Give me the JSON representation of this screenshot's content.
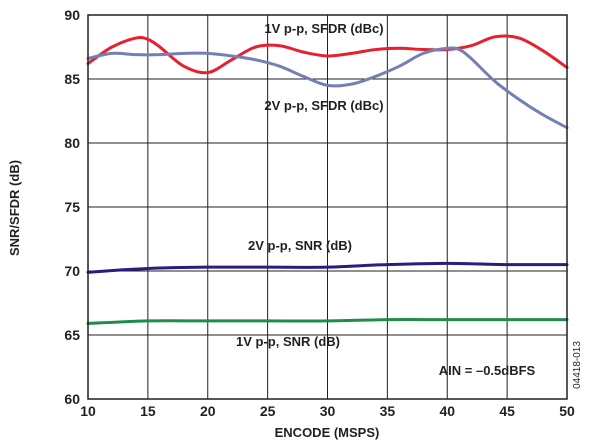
{
  "chart_data": {
    "type": "line",
    "title": "",
    "xlabel": "ENCODE (MSPS)",
    "ylabel": "SNR/SFDR (dB)",
    "xlim": [
      10,
      50
    ],
    "ylim": [
      60,
      90
    ],
    "xticks": [
      10,
      15,
      20,
      25,
      30,
      35,
      40,
      45,
      50
    ],
    "yticks": [
      60,
      65,
      70,
      75,
      80,
      85,
      90
    ],
    "grid": true,
    "series": [
      {
        "name": "1V p-p, SFDR (dBc)",
        "color": "#e8202e",
        "x": [
          10,
          12,
          14,
          15,
          16,
          18,
          20,
          22,
          24,
          26,
          28,
          30,
          32,
          34,
          36,
          38,
          40,
          42,
          44,
          46,
          48,
          50
        ],
        "y": [
          86.2,
          87.5,
          88.2,
          88.1,
          87.5,
          86.0,
          85.5,
          86.5,
          87.5,
          87.6,
          87.1,
          86.8,
          87.0,
          87.3,
          87.4,
          87.3,
          87.3,
          87.6,
          88.3,
          88.2,
          87.2,
          85.9
        ]
      },
      {
        "name": "2V p-p, SFDR (dBc)",
        "color": "#7480b5",
        "x": [
          10,
          12,
          14,
          16,
          18,
          20,
          22,
          24,
          26,
          28,
          30,
          32,
          34,
          36,
          38,
          40,
          41,
          42,
          44,
          46,
          48,
          50
        ],
        "y": [
          86.6,
          87.0,
          86.9,
          86.9,
          87.0,
          87.0,
          86.8,
          86.5,
          86.0,
          85.2,
          84.5,
          84.6,
          85.2,
          86.0,
          87.0,
          87.4,
          87.3,
          86.6,
          84.8,
          83.4,
          82.2,
          81.2
        ]
      },
      {
        "name": "2V p-p, SNR (dB)",
        "color": "#2d1b7e",
        "x": [
          10,
          15,
          20,
          25,
          30,
          35,
          40,
          45,
          50
        ],
        "y": [
          69.9,
          70.2,
          70.3,
          70.3,
          70.3,
          70.5,
          70.6,
          70.5,
          70.5
        ]
      },
      {
        "name": "1V p-p, SNR (dB)",
        "color": "#1f8c4a",
        "x": [
          10,
          15,
          20,
          25,
          30,
          35,
          40,
          45,
          50
        ],
        "y": [
          65.9,
          66.1,
          66.1,
          66.1,
          66.1,
          66.2,
          66.2,
          66.2,
          66.2
        ]
      }
    ],
    "annotations": {
      "condition": "AIN = –0.5dBFS",
      "figure_id": "04418-013"
    }
  }
}
